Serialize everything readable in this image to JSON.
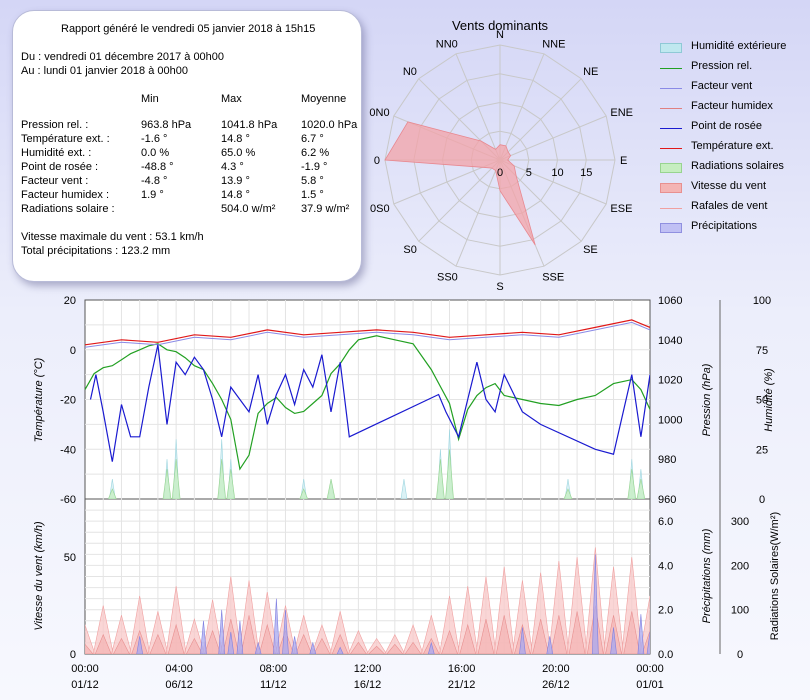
{
  "summary": {
    "header": "Rapport généré le vendredi 05 janvier 2018 à 15h15",
    "from": "Du : vendredi 01 décembre 2017 à 00h00",
    "to": "Au : lundi 01 janvier 2018 à 00h00",
    "col_min": "Min",
    "col_max": "Max",
    "col_avg": "Moyenne",
    "rows": [
      {
        "label": "Pression rel. :",
        "min": "963.8 hPa",
        "max": "1041.8 hPa",
        "avg": "1020.0 hPa"
      },
      {
        "label": "Température ext. :",
        "min": "-1.6 °",
        "max": "14.8 °",
        "avg": "6.7 °"
      },
      {
        "label": "Humidité ext. :",
        "min": "0.0 %",
        "max": "65.0 %",
        "avg": "6.2 %"
      },
      {
        "label": "Point de rosée :",
        "min": "-48.8 °",
        "max": "4.3 °",
        "avg": "-1.9 °"
      },
      {
        "label": "Facteur vent :",
        "min": "-4.8 °",
        "max": "13.9 °",
        "avg": "5.8 °"
      },
      {
        "label": "Facteur humidex :",
        "min": "1.9 °",
        "max": "14.8 °",
        "avg": "1.5 °"
      },
      {
        "label": "Radiations solaire :",
        "min": "",
        "max": "504.0 w/m²",
        "avg": "37.9 w/m²"
      }
    ],
    "max_wind": "Vitesse maximale du vent : 53.1 km/h",
    "total_rain": "Total précipitations : 123.2 mm"
  },
  "rose": {
    "title": "Vents dominants",
    "directions": [
      "N",
      "NNE",
      "NE",
      "ENE",
      "E",
      "ESE",
      "SE",
      "SSE",
      "S",
      "SS0",
      "S0",
      "0S0",
      "0",
      "0N0",
      "N0",
      "NN0"
    ],
    "ring_labels": [
      "0",
      "5",
      "10",
      "15"
    ],
    "values": [
      2,
      2,
      1.5,
      1.5,
      1,
      2,
      3,
      12,
      4,
      1.5,
      1.5,
      2.5,
      15,
      13,
      3.5,
      1.5
    ],
    "max": 15
  },
  "legend": {
    "items": [
      {
        "label": "Humidité extérieure",
        "kind": "box",
        "color": "#bfe8ef",
        "border": "#8fc9d6"
      },
      {
        "label": "Pression rel.",
        "kind": "line",
        "color": "#22a022"
      },
      {
        "label": "Facteur vent",
        "kind": "line",
        "color": "#8a8ae6"
      },
      {
        "label": "Facteur humidex",
        "kind": "line",
        "color": "#e08080"
      },
      {
        "label": "Point de rosée",
        "kind": "line",
        "color": "#1a1ad0"
      },
      {
        "label": "Température ext.",
        "kind": "line",
        "color": "#e01818"
      },
      {
        "label": "Radiations solaires",
        "kind": "box",
        "color": "#c6eec0",
        "border": "#98d490"
      },
      {
        "label": "Vitesse du vent",
        "kind": "box",
        "color": "#f4b4b4",
        "border": "#e89090"
      },
      {
        "label": "Rafales de vent",
        "kind": "line",
        "color": "#f0a0a0"
      },
      {
        "label": "Précipitations",
        "kind": "box",
        "color": "#c0c0f4",
        "border": "#9090e0"
      }
    ]
  },
  "chart_data": [
    {
      "type": "line",
      "title": "",
      "x_tick_labels": [
        "00:00\n01/12",
        "04:00\n06/12",
        "08:00\n11/12",
        "12:00\n16/12",
        "16:00\n21/12",
        "20:00\n26/12",
        "00:00\n01/01"
      ],
      "ylabel": "Température (°C)",
      "y_ticks": [
        "-60",
        "-40",
        "-20",
        "0",
        "20"
      ],
      "ylim": [
        -60,
        20
      ],
      "y2label": "Pression (hPa)",
      "y2_ticks": [
        "960",
        "980",
        "1000",
        "1020",
        "1040",
        "1060"
      ],
      "y2lim": [
        960,
        1060
      ],
      "y3label": "Humidité (%)",
      "y3_ticks": [
        "0",
        "25",
        "50",
        "75",
        "100"
      ],
      "y3lim": [
        0,
        100
      ],
      "series": [
        {
          "name": "Température ext.",
          "axis": "temp",
          "x": [
            0,
            2,
            4,
            6,
            8,
            10,
            12,
            14,
            16,
            18,
            20,
            22,
            24,
            26,
            28,
            30,
            31
          ],
          "values": [
            2,
            4,
            3,
            6,
            5,
            8,
            6,
            7,
            8,
            7,
            5,
            6,
            7,
            6,
            9,
            12,
            9
          ]
        },
        {
          "name": "Facteur vent",
          "axis": "temp",
          "x": [
            0,
            2,
            4,
            6,
            8,
            10,
            12,
            14,
            16,
            18,
            20,
            22,
            24,
            26,
            28,
            30,
            31
          ],
          "values": [
            1,
            3,
            2,
            5,
            4,
            7,
            5,
            6,
            7,
            6,
            4,
            5,
            6,
            5,
            8,
            11,
            8
          ]
        },
        {
          "name": "Point de rosée",
          "axis": "temp",
          "x": [
            0.3,
            0.6,
            1,
            1.5,
            2,
            2.5,
            3,
            3.5,
            4,
            4.5,
            5,
            5.5,
            6,
            6.5,
            7,
            7.5,
            8,
            8.5,
            9,
            9.5,
            10,
            10.5,
            11,
            11.5,
            12,
            12.5,
            13,
            13.5,
            14,
            14.5,
            19.4,
            19.8,
            20.5,
            21,
            21.5,
            22,
            22.5,
            23,
            24,
            25,
            28,
            29,
            30,
            30.5,
            31
          ],
          "values": [
            -20,
            -10,
            -25,
            -45,
            -22,
            -35,
            -35,
            -15,
            2,
            -30,
            -5,
            -10,
            -3,
            -8,
            -20,
            -35,
            -15,
            -20,
            -25,
            -10,
            -30,
            -18,
            -10,
            -22,
            -8,
            -15,
            -2,
            -25,
            -5,
            -35,
            -18,
            -25,
            -35,
            -20,
            -5,
            -20,
            -25,
            -10,
            -25,
            -30,
            -40,
            -42,
            -10,
            -35,
            -10
          ]
        },
        {
          "name": "Pression rel.",
          "axis": "pres",
          "x": [
            0,
            0.5,
            1,
            1.5,
            2,
            2.5,
            3,
            3.5,
            4,
            4.5,
            5,
            5.5,
            6,
            6.5,
            7,
            7.5,
            8,
            8.5,
            9,
            9.5,
            10,
            10.5,
            11,
            11.5,
            12,
            12.5,
            13,
            13.5,
            14,
            14.5,
            15,
            16,
            17,
            18,
            19,
            20,
            20.5,
            21,
            21.5,
            22,
            22.5,
            23,
            24,
            25,
            26,
            27,
            28,
            29,
            30,
            30.5,
            31
          ],
          "values": [
            1015,
            1023,
            1026,
            1027,
            1030,
            1033,
            1035,
            1037,
            1038,
            1035,
            1034,
            1031,
            1027,
            1025,
            1018,
            1010,
            1000,
            975,
            982,
            1003,
            1008,
            1011,
            1006,
            1003,
            1004,
            1008,
            1012,
            1023,
            1028,
            1035,
            1040,
            1042,
            1040,
            1038,
            1025,
            1008,
            990,
            1005,
            1012,
            1016,
            1018,
            1012,
            1010,
            1008,
            1007,
            1010,
            1012,
            1018,
            1020,
            1015,
            1005
          ]
        },
        {
          "name": "Humidité extérieure",
          "axis": "hum",
          "x": [
            1.5,
            4.5,
            5,
            7.5,
            8,
            12,
            13.5,
            17.5,
            19.5,
            20,
            26.5,
            30,
            30.5
          ],
          "values": [
            10,
            20,
            30,
            30,
            20,
            10,
            10,
            10,
            25,
            35,
            10,
            20,
            15
          ]
        },
        {
          "name": "Radiations solaires",
          "axis": "hum",
          "x": [
            1.5,
            4.5,
            5,
            7.5,
            8,
            12,
            13.5,
            19.5,
            20,
            26.5,
            30,
            30.5
          ],
          "values": [
            5,
            15,
            20,
            20,
            15,
            5,
            10,
            20,
            25,
            5,
            15,
            10
          ]
        }
      ]
    },
    {
      "type": "bar",
      "title": "",
      "x_tick_labels": [
        "00:00\n01/12",
        "04:00\n06/12",
        "08:00\n11/12",
        "12:00\n16/12",
        "16:00\n21/12",
        "20:00\n26/12",
        "00:00\n01/01"
      ],
      "ylabel": "Vitesse du vent (km/h)",
      "y_ticks": [
        "0",
        "50"
      ],
      "ylim": [
        0,
        80
      ],
      "y2label": "Précipitations (mm)",
      "y2_ticks": [
        "0.0",
        "2.0",
        "4.0",
        "6.0"
      ],
      "y2lim": [
        0,
        7
      ],
      "y3label": "Radiations Solaires(W/m²)",
      "y3_ticks": [
        "0",
        "100",
        "200",
        "300"
      ],
      "y3lim": [
        0,
        350
      ],
      "series": [
        {
          "name": "Rafales de vent",
          "axis": "wind",
          "x": [
            0,
            1,
            2,
            3,
            4,
            5,
            6,
            7,
            8,
            9,
            10,
            11,
            12,
            13,
            14,
            15,
            16,
            17,
            18,
            19,
            20,
            21,
            22,
            23,
            24,
            25,
            26,
            27,
            28,
            29,
            30,
            31
          ],
          "values": [
            15,
            25,
            20,
            30,
            22,
            35,
            18,
            28,
            40,
            38,
            32,
            25,
            20,
            15,
            22,
            12,
            8,
            10,
            15,
            20,
            30,
            35,
            40,
            45,
            38,
            42,
            48,
            50,
            55,
            45,
            50,
            30
          ]
        },
        {
          "name": "Vitesse du vent",
          "axis": "wind",
          "x": [
            0,
            1,
            2,
            3,
            4,
            5,
            6,
            7,
            8,
            9,
            10,
            11,
            12,
            13,
            14,
            15,
            16,
            17,
            18,
            19,
            20,
            21,
            22,
            23,
            24,
            25,
            26,
            27,
            28,
            29,
            30,
            31
          ],
          "values": [
            5,
            10,
            8,
            12,
            10,
            15,
            8,
            12,
            18,
            20,
            15,
            12,
            10,
            8,
            10,
            6,
            4,
            5,
            6,
            8,
            12,
            15,
            18,
            20,
            15,
            18,
            20,
            22,
            25,
            20,
            22,
            12
          ]
        },
        {
          "name": "Précipitations",
          "axis": "rain",
          "x": [
            3,
            6.5,
            7.5,
            8,
            8.5,
            9.5,
            10.5,
            11,
            11.5,
            12.5,
            14,
            19,
            24,
            25.5,
            28,
            29,
            30.5,
            31
          ],
          "values": [
            0.8,
            1.5,
            2.0,
            1.0,
            1.5,
            0.5,
            2.5,
            2.0,
            0.8,
            0.5,
            0.3,
            0.5,
            1.2,
            0.8,
            4.5,
            1.2,
            1.8,
            1.0
          ]
        }
      ]
    }
  ]
}
